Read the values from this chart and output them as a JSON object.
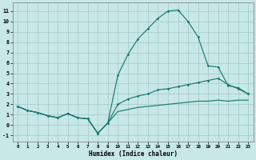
{
  "xlabel": "Humidex (Indice chaleur)",
  "background_color": "#c8e8e8",
  "grid_color": "#a8cccc",
  "line_color": "#1a7a6e",
  "xlim": [
    -0.5,
    23.5
  ],
  "ylim": [
    -1.6,
    11.8
  ],
  "xticks": [
    0,
    1,
    2,
    3,
    4,
    5,
    6,
    7,
    8,
    9,
    10,
    11,
    12,
    13,
    14,
    15,
    16,
    17,
    18,
    19,
    20,
    21,
    22,
    23
  ],
  "yticks": [
    -1,
    0,
    1,
    2,
    3,
    4,
    5,
    6,
    7,
    8,
    9,
    10,
    11
  ],
  "x": [
    0,
    1,
    2,
    3,
    4,
    5,
    6,
    7,
    8,
    9,
    10,
    11,
    12,
    13,
    14,
    15,
    16,
    17,
    18,
    19,
    20,
    21,
    22,
    23
  ],
  "y_top": [
    1.8,
    1.4,
    1.2,
    0.9,
    0.7,
    1.1,
    0.7,
    0.6,
    -0.8,
    0.2,
    4.8,
    6.8,
    8.3,
    9.3,
    10.3,
    11.0,
    11.1,
    10.0,
    8.5,
    5.7,
    5.6,
    3.8,
    3.6,
    3.0
  ],
  "y_mid": [
    1.8,
    1.4,
    1.2,
    0.9,
    0.7,
    1.1,
    0.7,
    0.6,
    -0.8,
    0.2,
    2.0,
    2.5,
    2.8,
    3.0,
    3.4,
    3.5,
    3.7,
    3.9,
    4.1,
    4.3,
    4.5,
    3.9,
    3.5,
    3.0
  ],
  "y_bot": [
    1.8,
    1.4,
    1.2,
    0.9,
    0.7,
    1.1,
    0.7,
    0.6,
    -0.8,
    0.2,
    1.3,
    1.5,
    1.7,
    1.8,
    1.9,
    2.0,
    2.1,
    2.2,
    2.3,
    2.3,
    2.4,
    2.3,
    2.4,
    2.4
  ]
}
